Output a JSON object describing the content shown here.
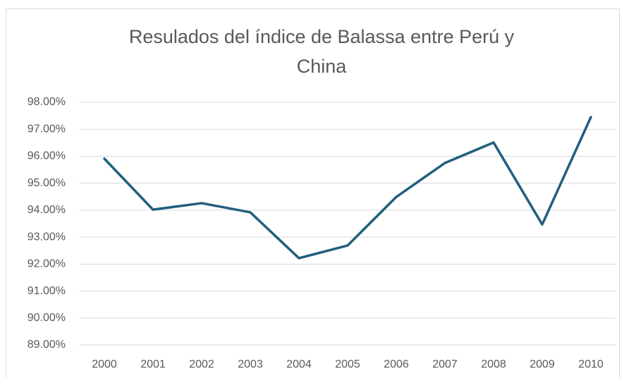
{
  "chart_data": {
    "type": "line",
    "title": "Resulados del índice de Balassa entre Perú y China",
    "categories": [
      "2000",
      "2001",
      "2002",
      "2003",
      "2004",
      "2005",
      "2006",
      "2007",
      "2008",
      "2009",
      "2010"
    ],
    "series": [
      {
        "name": "Índice de Balassa",
        "color": "#215f7e",
        "values": [
          95.91,
          94.02,
          94.26,
          93.92,
          92.22,
          92.69,
          94.49,
          95.75,
          96.51,
          93.47,
          97.45
        ]
      }
    ],
    "ylim": [
      89,
      98
    ],
    "yticks": [
      {
        "value": 89,
        "label": "89.00%"
      },
      {
        "value": 90,
        "label": "90.00%"
      },
      {
        "value": 91,
        "label": "91.00%"
      },
      {
        "value": 92,
        "label": "92.00%"
      },
      {
        "value": 93,
        "label": "93.00%"
      },
      {
        "value": 94,
        "label": "94.00%"
      },
      {
        "value": 95,
        "label": "95.00%"
      },
      {
        "value": 96,
        "label": "96.00%"
      },
      {
        "value": 97,
        "label": "97.00%"
      },
      {
        "value": 98,
        "label": "98.00%"
      }
    ],
    "grid": true
  }
}
